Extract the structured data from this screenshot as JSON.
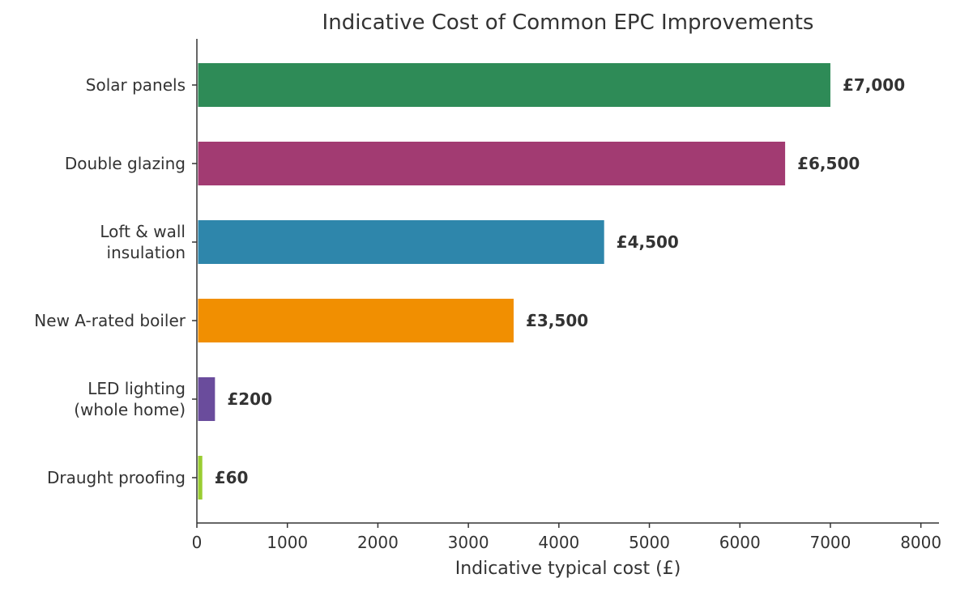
{
  "chart_data": {
    "type": "bar",
    "orientation": "horizontal",
    "title": "Indicative Cost of Common EPC Improvements",
    "xlabel": "Indicative typical cost (£)",
    "ylabel": "",
    "xlim": [
      0,
      8200
    ],
    "xticks": [
      0,
      1000,
      2000,
      3000,
      4000,
      5000,
      6000,
      7000,
      8000
    ],
    "categories": [
      [
        "Solar panels"
      ],
      [
        "Double glazing"
      ],
      [
        "Loft & wall",
        "insulation"
      ],
      [
        "New A-rated boiler"
      ],
      [
        "LED lighting",
        "(whole home)"
      ],
      [
        "Draught proofing"
      ]
    ],
    "values": [
      7000,
      6500,
      4500,
      3500,
      200,
      60
    ],
    "value_labels": [
      "£7,000",
      "£6,500",
      "£4,500",
      "£3,500",
      "£200",
      "£60"
    ],
    "colors": [
      "#2e8b57",
      "#a23b72",
      "#2e86ab",
      "#f18f01",
      "#6a4c9c",
      "#9acd32"
    ],
    "grid": false,
    "legend": "none"
  }
}
